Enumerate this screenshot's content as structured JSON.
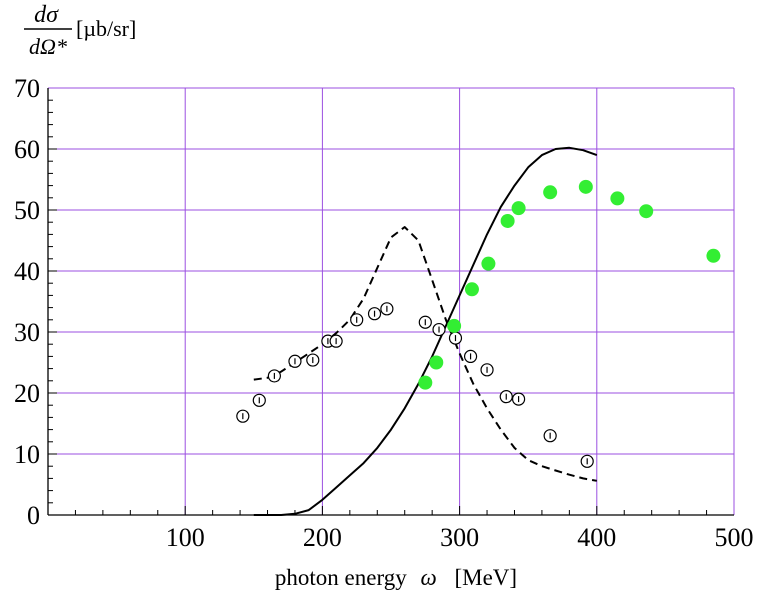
{
  "chart_data": {
    "type": "scatter",
    "title": "",
    "xlabel": "photon energy",
    "xlabel_symbol": "ω",
    "xlabel_unit": "[MeV]",
    "ylabel_numerator": "dσ",
    "ylabel_denominator": "dΩ*",
    "ylabel_unit": "[µb/sr]",
    "xlim": [
      0,
      500
    ],
    "ylim": [
      0,
      70
    ],
    "x_ticks": [
      100,
      200,
      300,
      400,
      500
    ],
    "y_ticks": [
      0,
      10,
      20,
      30,
      40,
      50,
      60,
      70
    ],
    "grid": true,
    "colors": {
      "grid": "#9b4fe0",
      "frame": "#000000",
      "green_points": "#33ee33",
      "curves": "#000000"
    },
    "series": [
      {
        "name": "open circles with error bars",
        "kind": "scatter-open",
        "x": [
          142,
          154,
          165,
          180,
          193,
          204,
          210,
          225,
          238,
          247,
          275,
          285,
          297,
          308,
          320,
          334,
          343,
          366,
          393
        ],
        "y": [
          16.2,
          18.8,
          22.8,
          25.2,
          25.4,
          28.5,
          28.5,
          32.0,
          33.0,
          33.8,
          31.6,
          30.4,
          29.0,
          26.0,
          23.8,
          19.4,
          19.0,
          13.0,
          8.8
        ]
      },
      {
        "name": "filled green circles",
        "kind": "scatter-filled",
        "x": [
          275,
          283,
          296,
          309,
          321,
          335,
          343,
          366,
          392,
          415,
          436,
          485
        ],
        "y": [
          21.7,
          25.0,
          31.0,
          37.0,
          41.2,
          48.2,
          50.3,
          52.9,
          53.8,
          51.9,
          49.8,
          42.5
        ]
      },
      {
        "name": "solid curve",
        "kind": "line-solid",
        "x": [
          150,
          170,
          180,
          190,
          200,
          210,
          220,
          230,
          240,
          250,
          260,
          270,
          280,
          290,
          300,
          310,
          320,
          330,
          340,
          350,
          360,
          370,
          380,
          390,
          400
        ],
        "y": [
          0,
          0,
          0.2,
          0.8,
          2.5,
          4.5,
          6.5,
          8.5,
          11.0,
          14.0,
          17.5,
          21.5,
          26.0,
          31.0,
          36.0,
          41.0,
          46.0,
          50.5,
          54.0,
          57.0,
          59.0,
          60.0,
          60.2,
          59.8,
          59.0
        ]
      },
      {
        "name": "dashed curve",
        "kind": "line-dashed",
        "x": [
          150,
          160,
          170,
          180,
          190,
          200,
          210,
          220,
          230,
          240,
          250,
          260,
          270,
          280,
          290,
          300,
          310,
          320,
          330,
          340,
          350,
          360,
          370,
          380,
          390,
          400
        ],
        "y": [
          22.2,
          22.5,
          23.5,
          25.0,
          26.5,
          28.0,
          29.8,
          32.0,
          35.5,
          40.5,
          45.5,
          47.2,
          45.0,
          38.5,
          32.0,
          26.5,
          21.5,
          17.5,
          14.0,
          11.0,
          9.0,
          8.0,
          7.3,
          6.6,
          6.0,
          5.6
        ]
      }
    ]
  }
}
